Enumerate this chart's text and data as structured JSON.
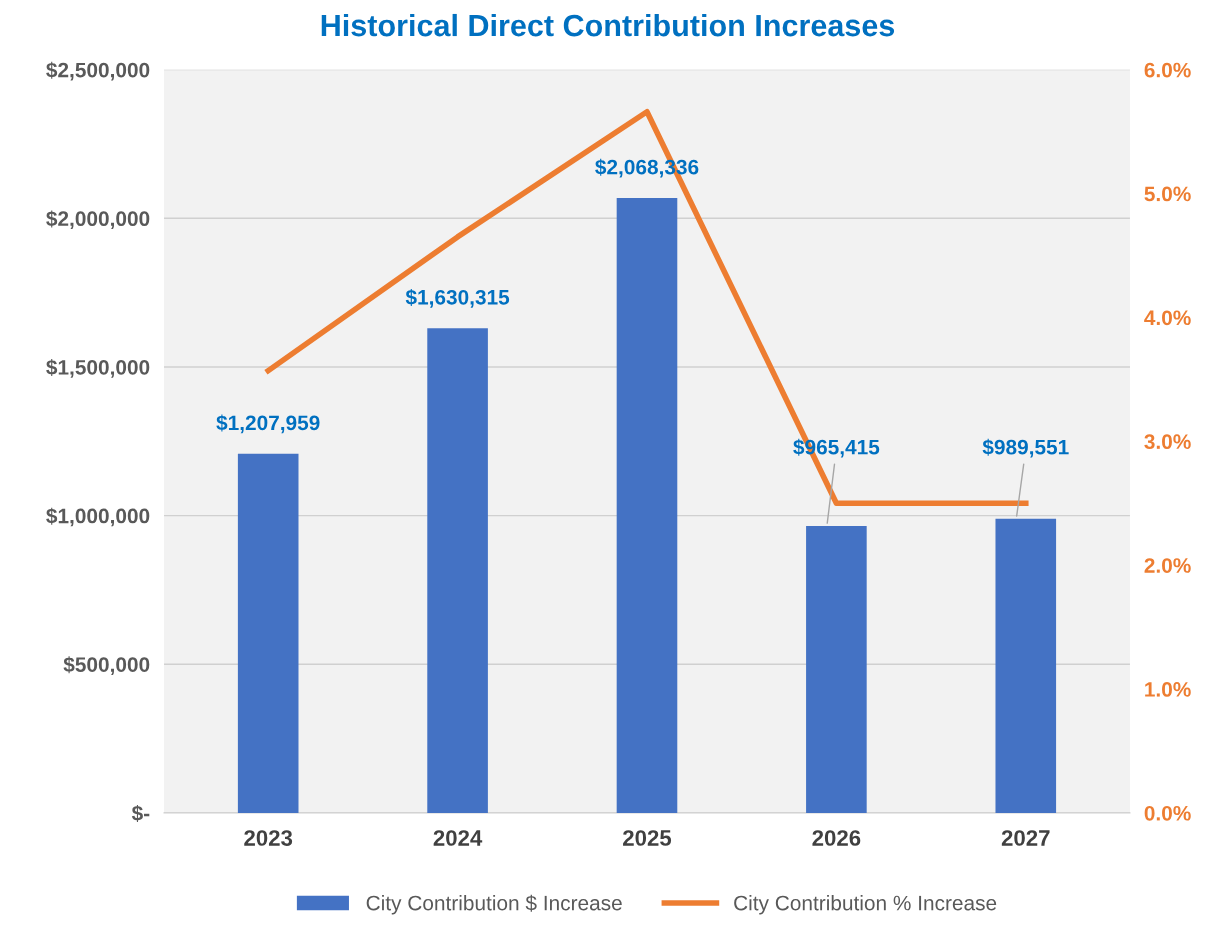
{
  "chart_data": {
    "type": "bar",
    "title": "Historical Direct Contribution Increases",
    "categories": [
      "2023",
      "2024",
      "2025",
      "2026",
      "2027"
    ],
    "series": [
      {
        "name": "City Contribution $ Increase",
        "color": "#4472c4",
        "values": [
          1207959,
          1630315,
          2068336,
          965415,
          989551
        ],
        "value_labels": [
          "$1,207,959",
          "$1,630,315",
          "$2,068,336",
          "$965,415",
          "$989,551"
        ]
      },
      {
        "name": "City Contribution % Increase",
        "type": "line",
        "axis": "y2",
        "color": "#ed7d31",
        "values": [
          3.57,
          4.65,
          5.66,
          2.5,
          2.5
        ]
      }
    ],
    "ylim": [
      0,
      2500000
    ],
    "yticks": [
      {
        "value": 0,
        "label": "$-"
      },
      {
        "value": 500000,
        "label": "$500,000"
      },
      {
        "value": 1000000,
        "label": "$1,000,000"
      },
      {
        "value": 1500000,
        "label": "$1,500,000"
      },
      {
        "value": 2000000,
        "label": "$2,000,000"
      },
      {
        "value": 2500000,
        "label": "$2,500,000"
      }
    ],
    "y2lim": [
      0,
      6
    ],
    "y2ticks": [
      {
        "value": 0,
        "label": "0.0%"
      },
      {
        "value": 1,
        "label": "1.0%"
      },
      {
        "value": 2,
        "label": "2.0%"
      },
      {
        "value": 3,
        "label": "3.0%"
      },
      {
        "value": 4,
        "label": "4.0%"
      },
      {
        "value": 5,
        "label": "5.0%"
      },
      {
        "value": 6,
        "label": "6.0%"
      }
    ],
    "grid": "y",
    "legend": "bottom",
    "marker": "none",
    "line_style": "solid"
  }
}
